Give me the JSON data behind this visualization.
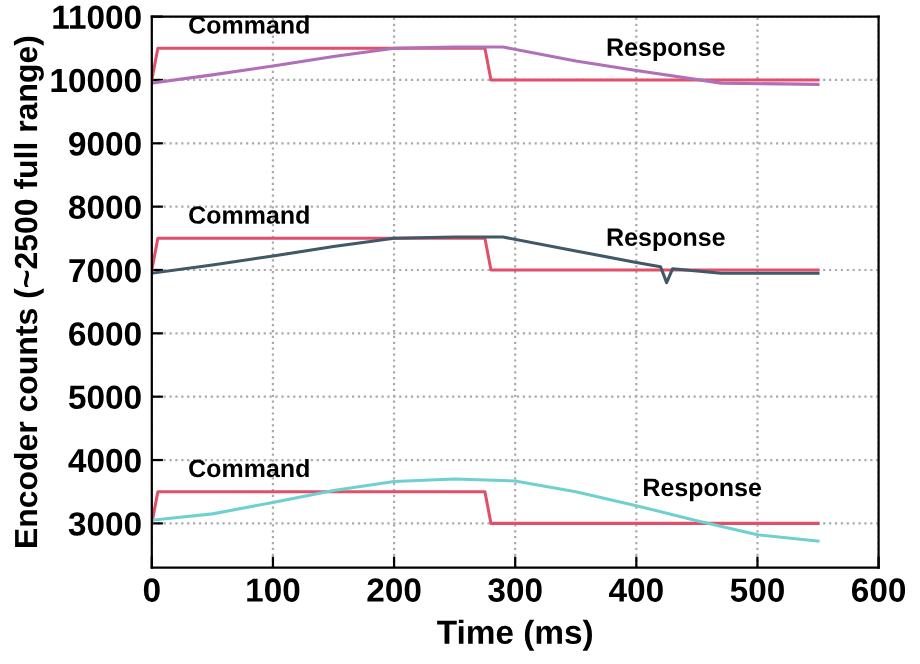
{
  "chart_data": {
    "type": "line",
    "xlabel": "Time (ms)",
    "ylabel": "Encoder counts (~2500 full range)",
    "xlim": [
      0,
      600
    ],
    "xticks": [
      0,
      100,
      200,
      300,
      400,
      500,
      600
    ],
    "ylim": [
      2300,
      11000
    ],
    "yticks": [
      3000,
      4000,
      5000,
      6000,
      7000,
      8000,
      9000,
      10000,
      11000
    ],
    "grid": true,
    "line_style": "solid",
    "marker": "none",
    "series": [
      {
        "color": "#e0506a",
        "x": [
          0,
          5,
          275,
          280,
          550
        ],
        "values": [
          10000,
          10500,
          10500,
          10000,
          10000
        ]
      },
      {
        "color": "#b070b8",
        "x": [
          0,
          50,
          100,
          150,
          200,
          250,
          290,
          350,
          400,
          470,
          550
        ],
        "values": [
          9950,
          10080,
          10220,
          10370,
          10500,
          10520,
          10520,
          10300,
          10150,
          9950,
          9930
        ]
      },
      {
        "color": "#e0506a",
        "x": [
          0,
          5,
          275,
          280,
          550
        ],
        "values": [
          7000,
          7500,
          7500,
          7000,
          7000
        ]
      },
      {
        "color": "#405868",
        "x": [
          0,
          50,
          100,
          150,
          200,
          250,
          290,
          350,
          400,
          420,
          425,
          430,
          470,
          550
        ],
        "values": [
          6950,
          7080,
          7220,
          7370,
          7500,
          7520,
          7520,
          7300,
          7120,
          7050,
          6800,
          7020,
          6950,
          6950
        ]
      },
      {
        "color": "#e0506a",
        "x": [
          0,
          5,
          275,
          280,
          550
        ],
        "values": [
          3000,
          3500,
          3500,
          3000,
          3000
        ]
      },
      {
        "color": "#70d0d0",
        "x": [
          0,
          50,
          100,
          150,
          200,
          250,
          300,
          350,
          400,
          450,
          500,
          550
        ],
        "values": [
          3050,
          3150,
          3330,
          3520,
          3660,
          3700,
          3670,
          3500,
          3280,
          3040,
          2820,
          2720
        ]
      }
    ],
    "annotations": [
      {
        "text": "Command",
        "x": 30,
        "y": 10650
      },
      {
        "text": "Response",
        "x": 375,
        "y": 10300
      },
      {
        "text": "Command",
        "x": 30,
        "y": 7650
      },
      {
        "text": "Response",
        "x": 375,
        "y": 7300
      },
      {
        "text": "Command",
        "x": 30,
        "y": 3650
      },
      {
        "text": "Response",
        "x": 405,
        "y": 3350
      }
    ]
  }
}
